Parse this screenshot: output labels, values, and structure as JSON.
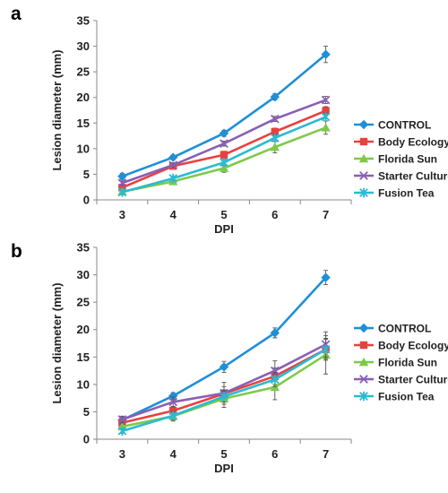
{
  "chart_data": [
    {
      "panel": "a",
      "type": "line",
      "xlabel": "DPI",
      "ylabel": "Lesion diameter (mm)",
      "categories": [
        "3",
        "4",
        "5",
        "6",
        "7"
      ],
      "ylim": [
        0,
        35
      ],
      "yticks": [
        "0",
        "5",
        "10",
        "15",
        "20",
        "25",
        "30",
        "35"
      ],
      "grid": false,
      "legend": "right",
      "series": [
        {
          "name": "CONTROL",
          "color": "#1f8fd6",
          "marker": "diamond",
          "values": [
            4.6,
            8.3,
            13.0,
            20.1,
            28.4
          ],
          "errors": [
            0.6,
            0.4,
            0.6,
            0.6,
            1.6
          ]
        },
        {
          "name": "Body Ecology",
          "color": "#e8413f",
          "marker": "square",
          "values": [
            2.4,
            6.6,
            8.8,
            13.3,
            17.4
          ],
          "errors": [
            0.4,
            0.4,
            0.7,
            0.7,
            0.8
          ]
        },
        {
          "name": "Florida Sun",
          "color": "#7fc94a",
          "marker": "triangle",
          "values": [
            1.6,
            3.6,
            6.2,
            10.3,
            14.1
          ],
          "errors": [
            0.3,
            0.6,
            0.8,
            1.1,
            1.3
          ]
        },
        {
          "name": "Starter Culture",
          "color": "#8a5fb4",
          "marker": "x",
          "values": [
            3.3,
            6.8,
            11.0,
            15.8,
            19.5
          ],
          "errors": [
            0.4,
            0.4,
            0.5,
            0.5,
            0.7
          ]
        },
        {
          "name": "Fusion Tea",
          "color": "#2bbad3",
          "marker": "star",
          "values": [
            1.5,
            4.2,
            7.3,
            12.1,
            16.2
          ],
          "errors": [
            0.3,
            0.4,
            0.6,
            0.7,
            0.8
          ]
        }
      ]
    },
    {
      "panel": "b",
      "type": "line",
      "xlabel": "DPI",
      "ylabel": "Lesion diameter (mm)",
      "categories": [
        "3",
        "4",
        "5",
        "6",
        "7"
      ],
      "ylim": [
        0,
        35
      ],
      "yticks": [
        "0",
        "5",
        "10",
        "15",
        "20",
        "25",
        "30",
        "35"
      ],
      "grid": false,
      "legend": "right",
      "series": [
        {
          "name": "CONTROL",
          "color": "#1f8fd6",
          "marker": "diamond",
          "values": [
            3.5,
            7.9,
            13.2,
            19.4,
            29.5
          ],
          "errors": [
            0.5,
            0.6,
            1.0,
            0.9,
            1.3
          ]
        },
        {
          "name": "Body Ecology",
          "color": "#e8413f",
          "marker": "square",
          "values": [
            3.0,
            5.2,
            8.3,
            11.5,
            16.4
          ],
          "errors": [
            0.5,
            0.8,
            1.3,
            1.5,
            2.0
          ]
        },
        {
          "name": "Florida Sun",
          "color": "#7fc94a",
          "marker": "triangle",
          "values": [
            2.3,
            4.2,
            7.4,
            9.5,
            15.4
          ],
          "errors": [
            0.5,
            0.9,
            1.6,
            2.3,
            3.5
          ]
        },
        {
          "name": "Starter Culture",
          "color": "#8a5fb4",
          "marker": "x",
          "values": [
            3.6,
            6.8,
            8.4,
            12.5,
            17.3
          ],
          "errors": [
            0.6,
            0.9,
            2.0,
            1.8,
            2.3
          ]
        },
        {
          "name": "Fusion Tea",
          "color": "#2bbad3",
          "marker": "star",
          "values": [
            1.5,
            4.3,
            7.8,
            10.9,
            16.4
          ],
          "errors": [
            0.4,
            0.8,
            1.0,
            1.3,
            1.8
          ]
        }
      ]
    }
  ]
}
